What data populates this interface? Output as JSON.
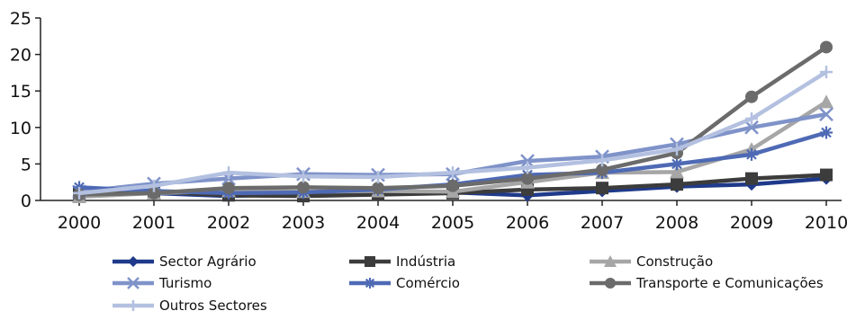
{
  "chart_data": {
    "type": "line",
    "title": "",
    "xlabel": "",
    "ylabel": "",
    "categories": [
      "2000",
      "2001",
      "2002",
      "2003",
      "2004",
      "2005",
      "2006",
      "2007",
      "2008",
      "2009",
      "2010"
    ],
    "ylim": [
      0,
      25
    ],
    "yticks": [
      "0",
      "5",
      "10",
      "15",
      "20",
      "25"
    ],
    "grid": false,
    "legend_position": "bottom",
    "series": [
      {
        "name": "Sector Agrário",
        "color": "#1f3a8a",
        "marker": "diamond",
        "values": [
          1.0,
          1.0,
          0.6,
          0.9,
          1.0,
          1.1,
          0.7,
          1.3,
          1.9,
          2.2,
          3.0
        ]
      },
      {
        "name": "Indústria",
        "color": "#3c3c3c",
        "marker": "square",
        "values": [
          1.0,
          1.2,
          0.7,
          0.6,
          0.8,
          1.0,
          1.5,
          1.7,
          2.2,
          3.0,
          3.5
        ]
      },
      {
        "name": "Construção",
        "color": "#a6a6a6",
        "marker": "triangle",
        "values": [
          0.5,
          1.0,
          1.3,
          1.2,
          1.3,
          1.2,
          2.5,
          3.8,
          3.9,
          7.0,
          13.5
        ]
      },
      {
        "name": "Turismo",
        "color": "#7f93c9",
        "marker": "x",
        "values": [
          1.2,
          2.3,
          3.0,
          3.6,
          3.5,
          3.6,
          5.4,
          6.0,
          7.7,
          10.0,
          11.8
        ]
      },
      {
        "name": "Comércio",
        "color": "#4e6ab5",
        "marker": "asterisk",
        "values": [
          1.8,
          1.3,
          1.0,
          1.1,
          1.5,
          2.2,
          3.5,
          3.8,
          5.0,
          6.3,
          9.3
        ]
      },
      {
        "name": "Transporte e Comunicações",
        "color": "#6b6b6b",
        "marker": "circle",
        "values": [
          0.8,
          1.0,
          1.7,
          1.8,
          1.7,
          2.0,
          3.0,
          4.2,
          6.5,
          14.2,
          21.0
        ]
      },
      {
        "name": "Outros Sectores",
        "color": "#b3c0e0",
        "marker": "plus",
        "values": [
          1.0,
          2.0,
          3.8,
          3.3,
          3.2,
          3.8,
          4.5,
          5.5,
          7.0,
          11.2,
          17.6
        ]
      }
    ]
  }
}
